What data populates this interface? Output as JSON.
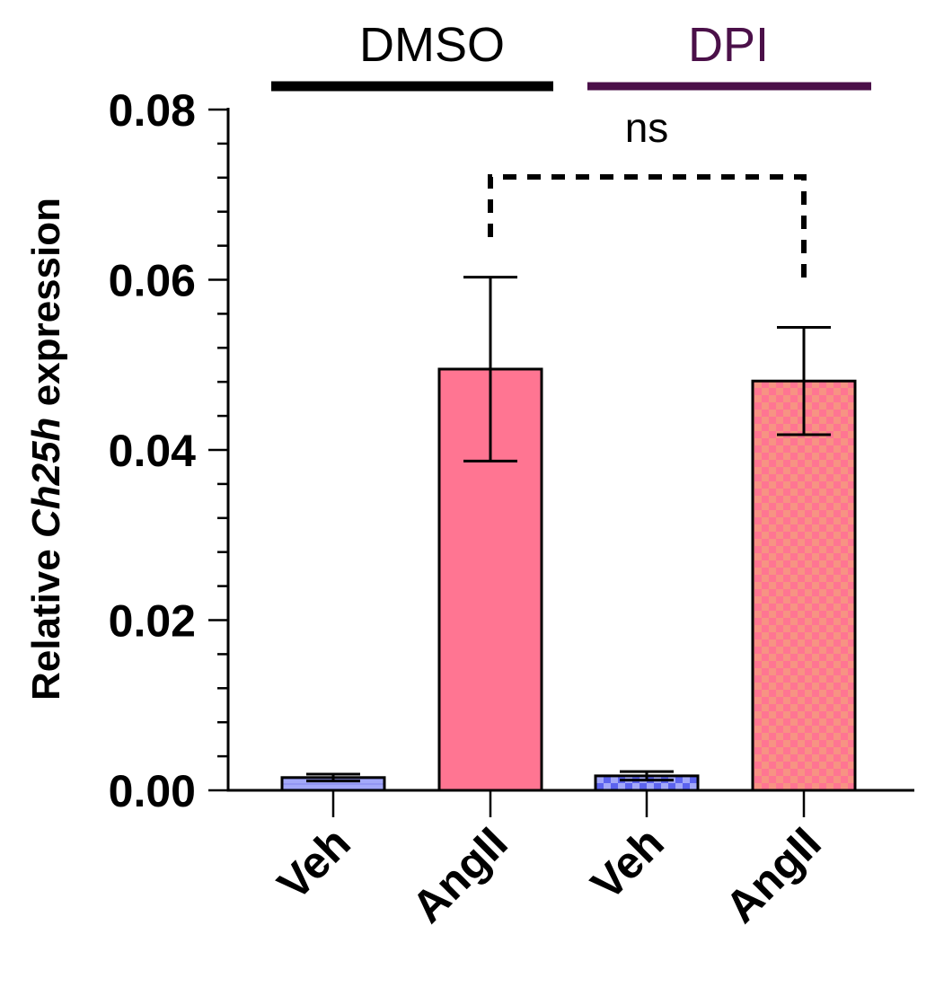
{
  "chart_data": {
    "type": "bar",
    "title": "",
    "xlabel": "",
    "ylabel": {
      "prefix": "Relative ",
      "gene": "Ch25h",
      "suffix": " expression"
    },
    "ylim": [
      0,
      0.08
    ],
    "yticks": [
      "0.00",
      "0.02",
      "0.04",
      "0.06",
      "0.08"
    ],
    "minor_tick_step": 0.004,
    "categories": [
      "Veh",
      "AngII",
      "Veh",
      "AngII"
    ],
    "values": [
      0.0015,
      0.0495,
      0.0017,
      0.0481
    ],
    "errors": [
      0.0004,
      0.0108,
      0.0005,
      0.0063
    ],
    "bar_fills": [
      "#a3a8f8",
      "#ff7592",
      "#a3a8f8",
      "#ff7592"
    ],
    "bar_patterns": [
      "stripe",
      "solid",
      "checker",
      "checker"
    ],
    "groups": [
      {
        "label": "DMSO",
        "color": "#000000",
        "categories": [
          0,
          1
        ]
      },
      {
        "label": "DPI",
        "color": "#4b1049",
        "categories": [
          2,
          3
        ]
      }
    ],
    "comparisons": [
      {
        "from": 1,
        "to": 3,
        "label": "ns",
        "style": "dashed"
      }
    ],
    "grid": false,
    "legend": "none"
  }
}
